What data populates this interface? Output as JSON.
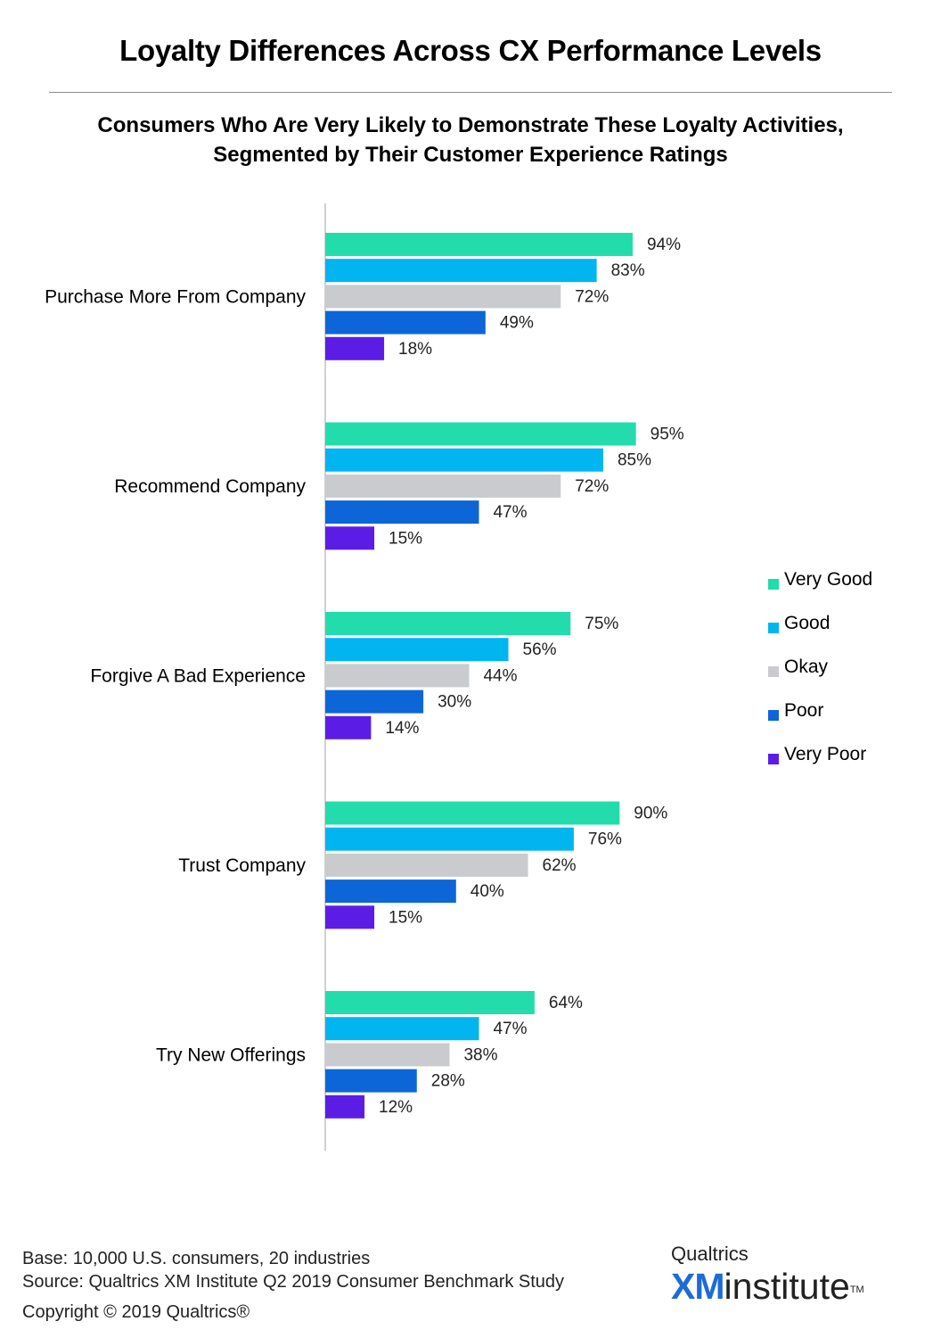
{
  "header": {
    "title": "Loyalty Differences Across CX Performance Levels",
    "subtitle_line1": "Consumers Who Are Very Likely to Demonstrate These Loyalty Activities,",
    "subtitle_line2": "Segmented by Their Customer Experience Ratings"
  },
  "chart_data": {
    "type": "bar",
    "orientation": "horizontal",
    "categories": [
      "Purchase More From Company",
      "Recommend Company",
      "Forgive A Bad Experience",
      "Trust Company",
      "Try New Offerings"
    ],
    "series": [
      {
        "name": "Very Good",
        "color": "#22ddab",
        "values": [
          94,
          95,
          75,
          90,
          64
        ],
        "labels": [
          "94%",
          "95%",
          "75%",
          "90%",
          "64%"
        ]
      },
      {
        "name": "Good",
        "color": "#00b5f0",
        "values": [
          83,
          85,
          56,
          76,
          47
        ],
        "labels": [
          "83%",
          "85%",
          "56%",
          "76%",
          "47%"
        ]
      },
      {
        "name": "Okay",
        "color": "#c9cbcf",
        "values": [
          72,
          72,
          44,
          62,
          38
        ],
        "labels": [
          "72%",
          "72%",
          "44%",
          "62%",
          "38%"
        ]
      },
      {
        "name": "Poor",
        "color": "#0d66d8",
        "values": [
          49,
          47,
          30,
          40,
          28
        ],
        "labels": [
          "49%",
          "47%",
          "30%",
          "40%",
          "28%"
        ]
      },
      {
        "name": "Very Poor",
        "color": "#5b1de6",
        "values": [
          18,
          15,
          14,
          15,
          12
        ],
        "labels": [
          "18%",
          "15%",
          "14%",
          "15%",
          "12%"
        ]
      }
    ],
    "xlim": [
      0,
      100
    ],
    "legend_position": "right",
    "grid": false,
    "value_unit": "%"
  },
  "footer": {
    "base": "Base: 10,000 U.S. consumers, 20 industries",
    "source": "Source: Qualtrics XM Institute Q2 2019 Consumer Benchmark Study",
    "copyright": "Copyright © 2019 Qualtrics®"
  },
  "logo": {
    "top": "Qualtrics",
    "xm": "XM",
    "institute": "institute",
    "tm": "TM"
  }
}
